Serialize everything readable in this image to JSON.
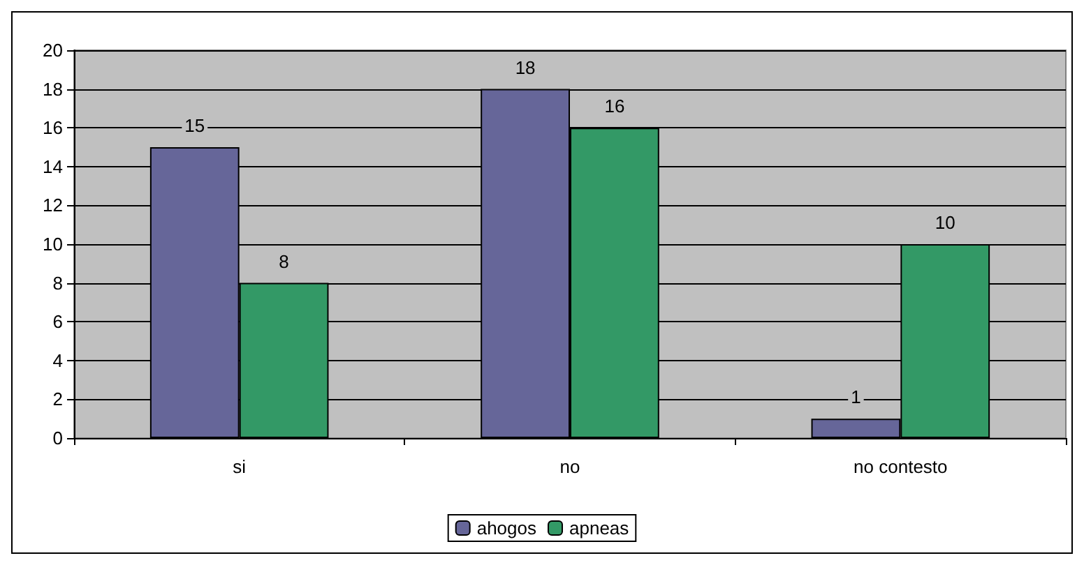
{
  "chart_data": {
    "type": "bar",
    "categories": [
      "si",
      "no",
      "no contesto"
    ],
    "series": [
      {
        "name": "ahogos",
        "color": "#666699",
        "values": [
          15,
          18,
          1
        ]
      },
      {
        "name": "apneas",
        "color": "#339966",
        "values": [
          8,
          16,
          10
        ]
      }
    ],
    "ylim": [
      0,
      20
    ],
    "yticks": [
      0,
      2,
      4,
      6,
      8,
      10,
      12,
      14,
      16,
      18,
      20
    ],
    "grid": "y",
    "legend": "bottom",
    "data_labels": true
  }
}
